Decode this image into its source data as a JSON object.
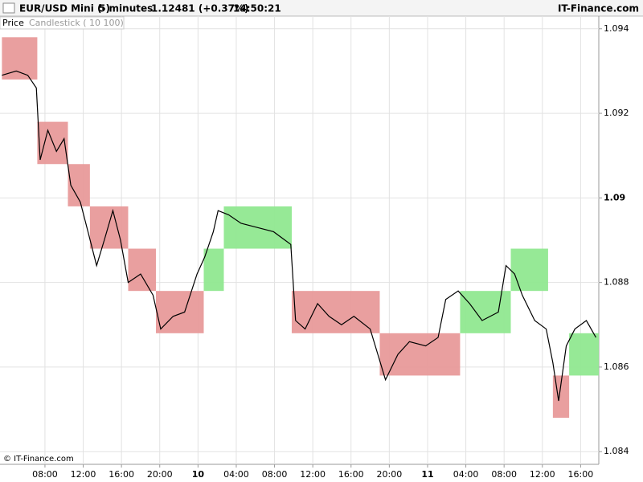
{
  "chart_data": {
    "type": "renko",
    "title": "EUR/USD Mini (-)",
    "interval": "5 minutes",
    "last_price": "1.12481 (+0.37%)",
    "time": "14:50:21",
    "brand": "IT-Finance.com",
    "panel_label": "Price",
    "indicator_label": "Candlestick ( 10 100)",
    "copyright": "© IT-Finance.com",
    "up_color": "#90e890",
    "down_color": "#e89a9a",
    "line_color": "#000000",
    "grid": true,
    "xlim": [
      3.3,
      65.9
    ],
    "ylim": [
      1.0837,
      1.0943
    ],
    "yticks": [
      1.094,
      1.092,
      1.09,
      1.088,
      1.086,
      1.084
    ],
    "xticks": [
      {
        "value": 8,
        "label": "08:00"
      },
      {
        "value": 12,
        "label": "12:00"
      },
      {
        "value": 16,
        "label": "16:00"
      },
      {
        "value": 20,
        "label": "20:00"
      },
      {
        "value": 24,
        "label": "10"
      },
      {
        "value": 28,
        "label": "04:00"
      },
      {
        "value": 32,
        "label": "08:00"
      },
      {
        "value": 36,
        "label": "12:00"
      },
      {
        "value": 40,
        "label": "16:00"
      },
      {
        "value": 44,
        "label": "20:00"
      },
      {
        "value": 48,
        "label": "11"
      },
      {
        "value": 52,
        "label": "04:00"
      },
      {
        "value": 56,
        "label": "08:00"
      },
      {
        "value": 60,
        "label": "12:00"
      },
      {
        "value": 64,
        "label": "16:00"
      }
    ],
    "bricks": [
      {
        "x": [
          3.5,
          7.2
        ],
        "open": 1.0938,
        "close": 1.0928
      },
      {
        "x": [
          7.2,
          10.4
        ],
        "open": 1.0918,
        "close": 1.0908
      },
      {
        "x": [
          10.4,
          12.7
        ],
        "open": 1.0908,
        "close": 1.0898
      },
      {
        "x": [
          12.7,
          16.7
        ],
        "open": 1.0898,
        "close": 1.0888
      },
      {
        "x": [
          16.7,
          19.6
        ],
        "open": 1.0888,
        "close": 1.0878
      },
      {
        "x": [
          19.6,
          24.6
        ],
        "open": 1.0878,
        "close": 1.0868
      },
      {
        "x": [
          24.6,
          26.7
        ],
        "open": 1.0878,
        "close": 1.0888
      },
      {
        "x": [
          26.7,
          33.8
        ],
        "open": 1.0888,
        "close": 1.0898
      },
      {
        "x": [
          33.8,
          43.0
        ],
        "open": 1.0878,
        "close": 1.0868
      },
      {
        "x": [
          43.0,
          51.4
        ],
        "open": 1.0868,
        "close": 1.0858
      },
      {
        "x": [
          51.4,
          56.7
        ],
        "open": 1.0868,
        "close": 1.0878
      },
      {
        "x": [
          56.7,
          60.6
        ],
        "open": 1.0878,
        "close": 1.0888
      },
      {
        "x": [
          61.1,
          62.8
        ],
        "open": 1.0858,
        "close": 1.0848
      },
      {
        "x": [
          62.8,
          65.9
        ],
        "open": 1.0858,
        "close": 1.0868
      }
    ],
    "x": [
      3.5,
      5.0,
      6.2,
      7.1,
      7.5,
      8.3,
      9.2,
      10.0,
      10.7,
      11.7,
      12.5,
      13.4,
      14.2,
      15.1,
      15.9,
      16.7,
      18.0,
      19.3,
      20.1,
      21.4,
      22.6,
      23.9,
      24.7,
      25.6,
      26.1,
      27.2,
      28.5,
      30.2,
      31.9,
      33.1,
      33.7,
      34.2,
      35.2,
      36.5,
      37.7,
      39.0,
      40.3,
      42.0,
      42.8,
      43.6,
      44.9,
      46.1,
      47.8,
      49.1,
      49.9,
      51.2,
      52.4,
      53.7,
      55.4,
      56.2,
      57.1,
      57.9,
      59.2,
      60.4,
      61.1,
      61.7,
      62.5,
      63.4,
      64.6,
      65.6
    ],
    "values": [
      1.0929,
      1.093,
      1.0929,
      1.0926,
      1.0909,
      1.0916,
      1.0911,
      1.0914,
      1.0903,
      1.0899,
      1.0892,
      1.0884,
      1.089,
      1.0897,
      1.089,
      1.088,
      1.0882,
      1.0877,
      1.0869,
      1.0872,
      1.0873,
      1.0882,
      1.0886,
      1.0892,
      1.0897,
      1.0896,
      1.0894,
      1.0893,
      1.0892,
      1.089,
      1.0889,
      1.0871,
      1.0869,
      1.0875,
      1.0872,
      1.087,
      1.0872,
      1.0869,
      1.0863,
      1.0857,
      1.0863,
      1.0866,
      1.0865,
      1.0867,
      1.0876,
      1.0878,
      1.0875,
      1.0871,
      1.0873,
      1.0884,
      1.0882,
      1.0877,
      1.0871,
      1.0869,
      1.0861,
      1.0852,
      1.0865,
      1.0869,
      1.0871,
      1.0867
    ]
  }
}
